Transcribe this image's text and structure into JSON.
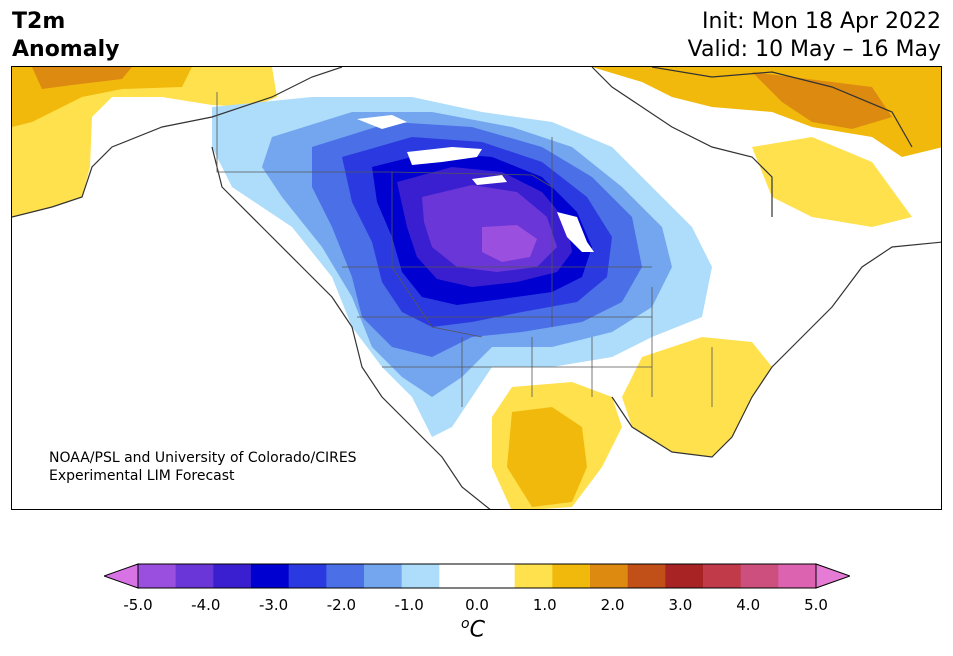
{
  "title": {
    "left_line1": "T2m",
    "left_line2": "Anomaly",
    "init": "Init: Mon 18 Apr 2022",
    "valid": "Valid: 10 May – 16 May"
  },
  "credit": {
    "line1": "NOAA/PSL and University of Colorado/CIRES",
    "line2": "Experimental LIM Forecast"
  },
  "colorbar": {
    "colors": [
      "#d873e6",
      "#9b4fde",
      "#6a36d8",
      "#3a1fd0",
      "#0000d0",
      "#2a3ae0",
      "#4a6fe6",
      "#74a6f0",
      "#aedcfb",
      "#ffffff",
      "#ffffff",
      "#ffe14d",
      "#f1b90c",
      "#dd8a10",
      "#c05018",
      "#a82424",
      "#c03a4a",
      "#cd4f7d",
      "#db63b0",
      "#e57bd4"
    ],
    "ticks": [
      "-5.0",
      "-4.0",
      "-3.0",
      "-2.0",
      "-1.0",
      "0.0",
      "1.0",
      "2.0",
      "3.0",
      "4.0",
      "5.0"
    ],
    "unit": "C",
    "unit_prefix": "o"
  },
  "map_colors": {
    "cold1": "#aedcfb",
    "cold2": "#74a6f0",
    "cold3": "#4a6fe6",
    "cold4": "#2a3ae0",
    "cold5": "#0000d0",
    "cold6": "#3a1fd0",
    "cold7": "#6a36d8",
    "cold8": "#9b4fde",
    "warm1": "#ffe14d",
    "warm2": "#f1b90c",
    "warm3": "#dd8a10",
    "coast": "#333333"
  }
}
